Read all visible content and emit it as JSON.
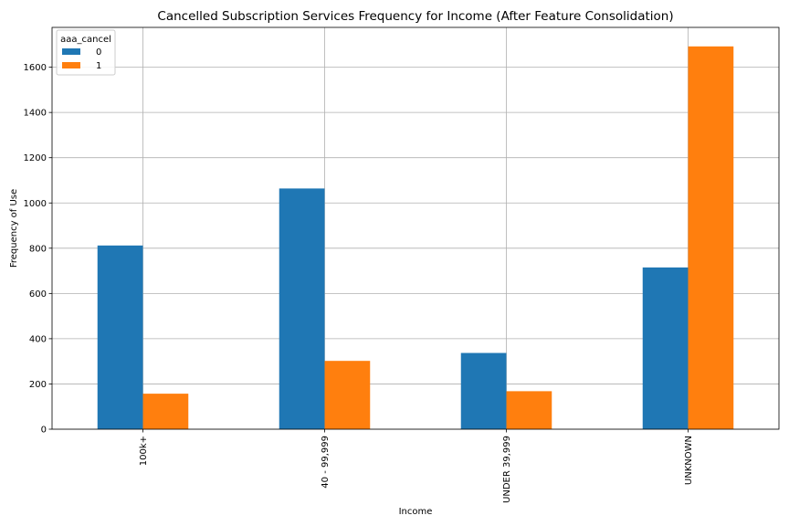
{
  "chart_data": {
    "type": "bar",
    "title": "Cancelled Subscription Services Frequency for Income (After Feature Consolidation)",
    "xlabel": "Income",
    "ylabel": "Frequency of Use",
    "categories": [
      "100k+",
      "40 - 99,999",
      "UNDER 39,999",
      "UNKNOWN"
    ],
    "series": [
      {
        "name": "0",
        "values": [
          812,
          1064,
          337,
          715
        ],
        "color": "#1f77b4"
      },
      {
        "name": "1",
        "values": [
          157,
          302,
          168,
          1692
        ],
        "color": "#ff7f0e"
      }
    ],
    "legend_title": "aaa_cancel",
    "legend_position": "top-left",
    "ylim": [
      0,
      1776
    ],
    "yticks": [
      0,
      200,
      400,
      600,
      800,
      1000,
      1200,
      1400,
      1600
    ],
    "grid": true
  }
}
